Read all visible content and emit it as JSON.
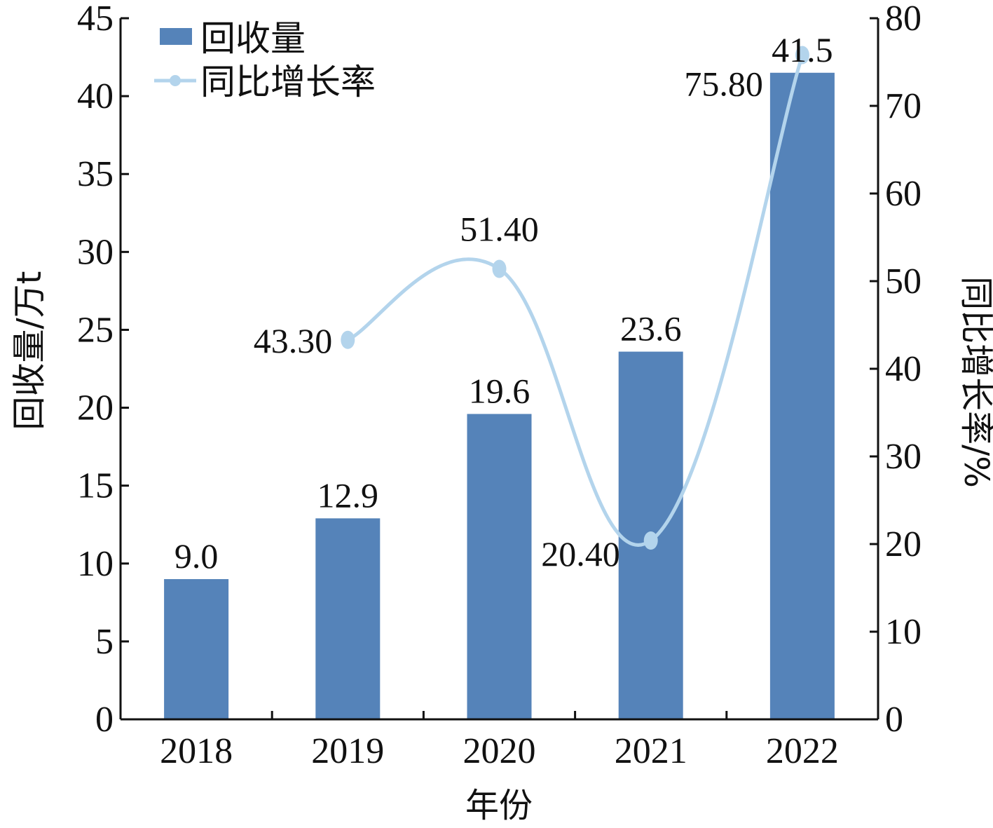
{
  "chart_data": {
    "type": "bar",
    "categories": [
      "2018",
      "2019",
      "2020",
      "2021",
      "2022"
    ],
    "series": [
      {
        "name": "回收量",
        "type": "bar",
        "axis": "left",
        "values": [
          9.0,
          12.9,
          19.6,
          23.6,
          41.5
        ],
        "labels": [
          "9.0",
          "12.9",
          "19.6",
          "23.6",
          "41.5"
        ],
        "color": "#5583b9"
      },
      {
        "name": "同比增长率",
        "type": "line",
        "axis": "right",
        "values": [
          null,
          43.3,
          51.4,
          20.4,
          75.8
        ],
        "labels": [
          "",
          "43.30",
          "51.40",
          "20.40",
          "75.80"
        ],
        "color": "#b3d4ec",
        "smooth": true
      }
    ],
    "xlabel": "年份",
    "ylabel": "回收量/万t",
    "y2label": "同比增长率/%",
    "ylim": [
      0,
      45
    ],
    "y2lim": [
      0,
      80
    ],
    "yticks": [
      "0",
      "5",
      "10",
      "15",
      "20",
      "25",
      "30",
      "35",
      "40",
      "45"
    ],
    "y2ticks": [
      "0",
      "10",
      "20",
      "30",
      "40",
      "50",
      "60",
      "70",
      "80"
    ],
    "legend": "top-left",
    "grid": false
  }
}
